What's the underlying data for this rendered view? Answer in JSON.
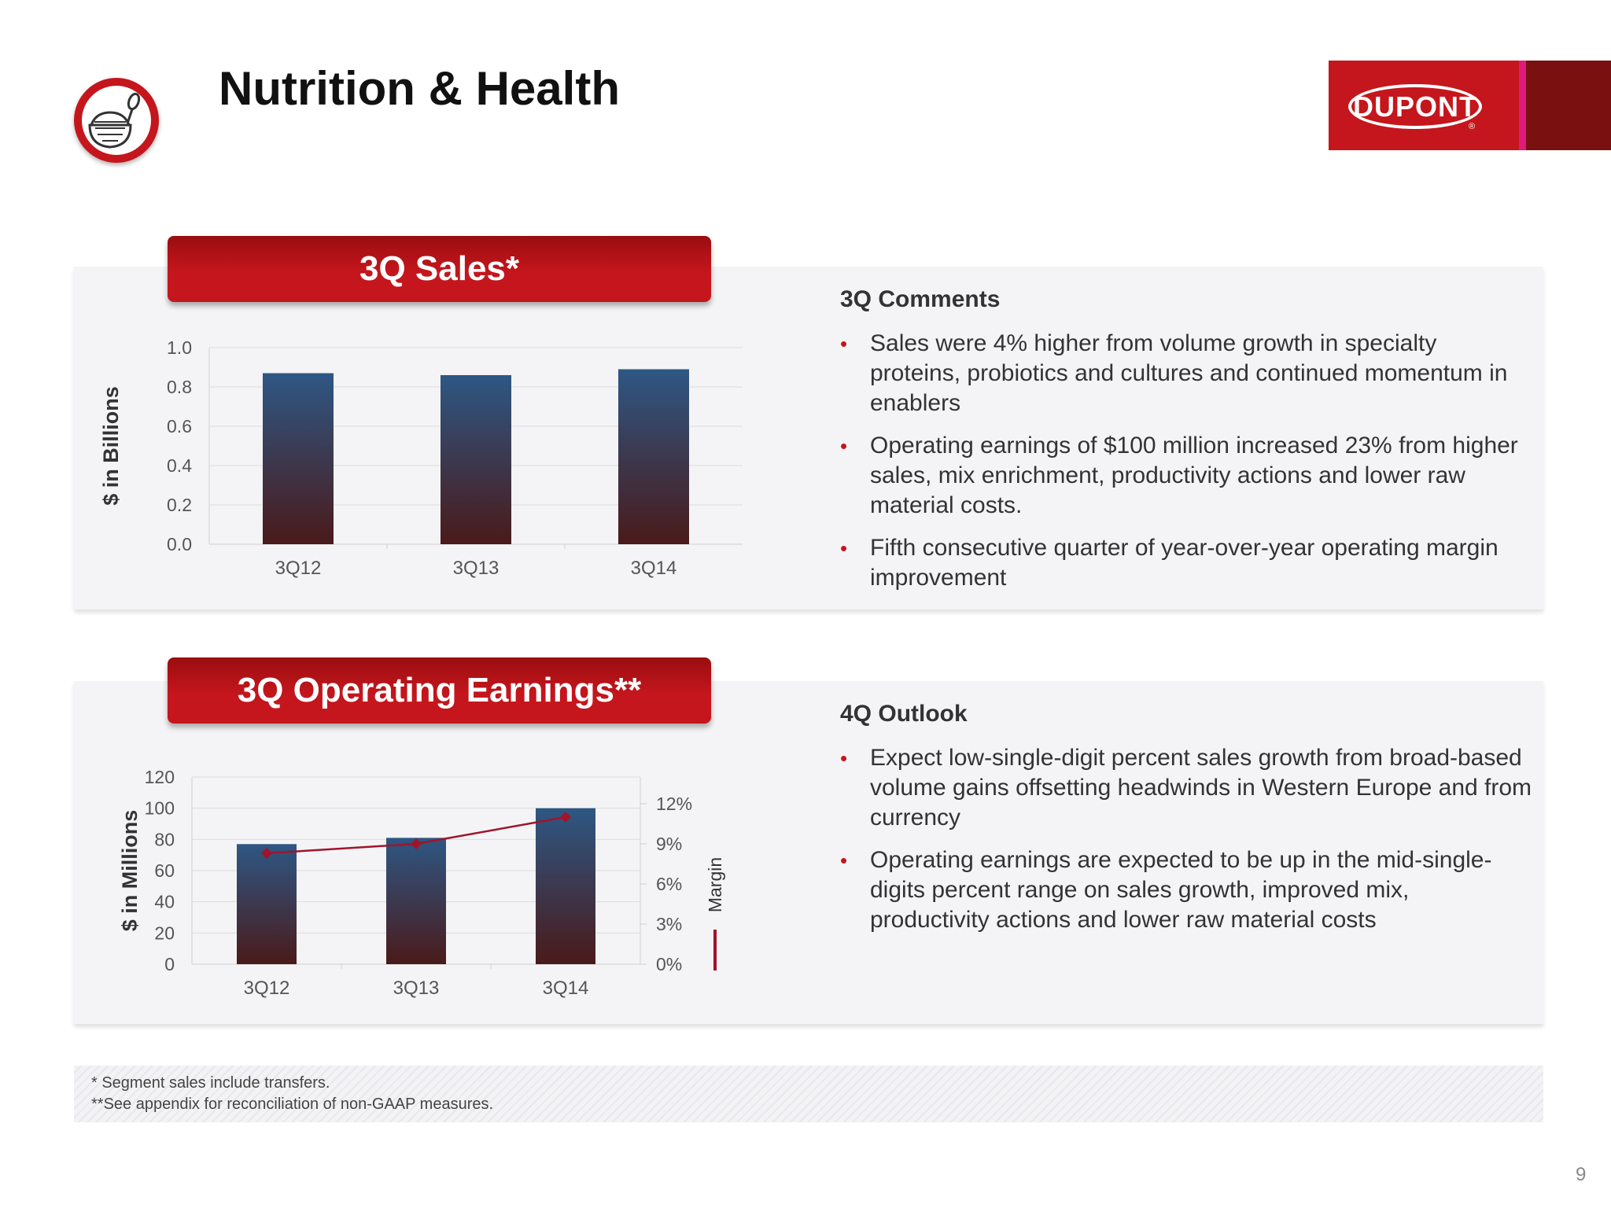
{
  "header": {
    "title": "Nutrition & Health",
    "icon": "food-bowl-spoon-icon",
    "brand_logo_text": "DUPONT",
    "brand_color": "#c4161c"
  },
  "sales_panel": {
    "banner": "3Q Sales*"
  },
  "earnings_panel": {
    "banner": "3Q Operating Earnings**"
  },
  "comments": {
    "heading": "3Q Comments",
    "bullets": [
      "Sales were 4% higher from volume growth in specialty proteins, probiotics and cultures and continued momentum in enablers",
      "Operating earnings of $100 million increased 23% from higher sales, mix enrichment, productivity actions and lower raw material costs.",
      "Fifth consecutive quarter of year-over-year operating margin improvement"
    ]
  },
  "outlook": {
    "heading": "4Q Outlook",
    "bullets": [
      "Expect low-single-digit percent sales growth from broad-based volume gains offsetting headwinds in Western Europe and from currency",
      "Operating earnings are expected to be up in the mid-single-digits percent range on sales growth, improved mix, productivity actions and lower raw material costs"
    ]
  },
  "footnotes": [
    "* Segment sales include transfers.",
    "**See appendix for reconciliation of non-GAAP measures."
  ],
  "page_number": "9",
  "chart_data": [
    {
      "type": "bar",
      "title": "3Q Sales*",
      "categories": [
        "3Q12",
        "3Q13",
        "3Q14"
      ],
      "values": [
        0.87,
        0.86,
        0.89
      ],
      "ylabel": "$ in Billions",
      "ylim": [
        0,
        1.0
      ],
      "yticks": [
        "0.0",
        "0.2",
        "0.4",
        "0.6",
        "0.8",
        "1.0"
      ],
      "grid": true,
      "bar_color_top": "#2e5784",
      "bar_color_bottom": "#4a1a1a"
    },
    {
      "type": "bar",
      "title": "3Q Operating Earnings**",
      "categories": [
        "3Q12",
        "3Q13",
        "3Q14"
      ],
      "values": [
        77,
        81,
        100
      ],
      "ylabel": "$ in Millions",
      "ylim": [
        0,
        120
      ],
      "yticks": [
        "0",
        "20",
        "40",
        "60",
        "80",
        "100",
        "120"
      ],
      "grid": true,
      "bar_color_top": "#2e5784",
      "bar_color_bottom": "#4a1a1a",
      "secondary": {
        "type": "line",
        "name": "Margin",
        "values": [
          8.3,
          9.0,
          11.0
        ],
        "ylim": [
          0,
          14
        ],
        "yticks": [
          "0%",
          "3%",
          "6%",
          "9%",
          "12%"
        ],
        "color": "#a0142a"
      }
    }
  ]
}
